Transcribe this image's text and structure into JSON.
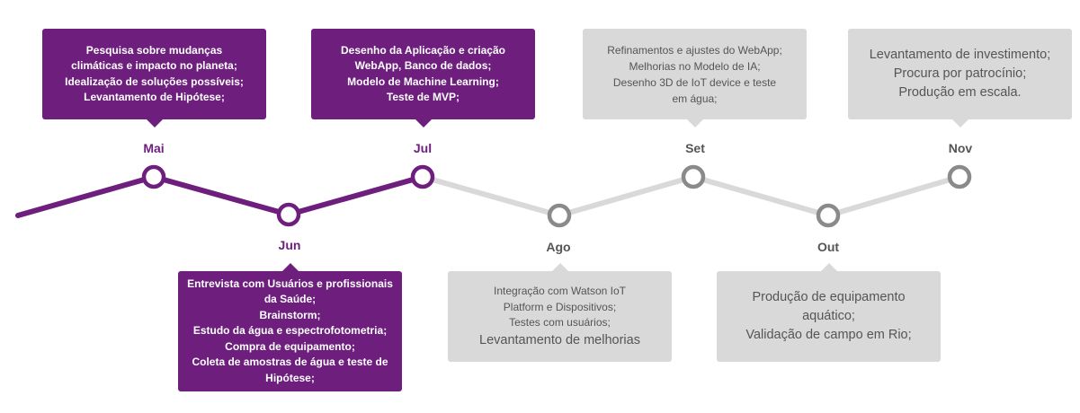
{
  "colors": {
    "done": "#6e1f7e",
    "todo": "#d9d9d9",
    "todo_text": "#555555",
    "node_todo": "#8a8a8a"
  },
  "months": [
    {
      "label": "Mai",
      "status": "done",
      "lines": [
        "Pesquisa sobre mudanças",
        "climáticas e impacto no planeta;",
        "Idealização de soluções possíveis;",
        "Levantamento de Hipótese;"
      ]
    },
    {
      "label": "Jun",
      "status": "done",
      "lines": [
        "Entrevista com Usuários e profissionais",
        "da Saúde;",
        "Brainstorm;",
        "Estudo da água e espectrofotometria;",
        "Compra de equipamento;",
        "Coleta de amostras de água e teste de",
        "Hipótese;"
      ]
    },
    {
      "label": "Jul",
      "status": "done",
      "lines": [
        "Desenho da Aplicação e criação",
        "WebApp, Banco de dados;",
        "Modelo de Machine Learning;",
        "Teste de MVP;"
      ]
    },
    {
      "label": "Ago",
      "status": "todo",
      "lines": [
        "Integração com Watson IoT",
        "Platform e Dispositivos;",
        "Testes com usuários;",
        "Levantamento de melhorias"
      ]
    },
    {
      "label": "Set",
      "status": "todo",
      "lines": [
        "Refinamentos e ajustes do WebApp;",
        "Melhorias no Modelo de IA;",
        "Desenho 3D de IoT device e teste",
        "em água;"
      ]
    },
    {
      "label": "Out",
      "status": "todo",
      "lines": [
        "Produção de equipamento",
        "aquático;",
        "Validação de campo em Rio;"
      ]
    },
    {
      "label": "Nov",
      "status": "todo",
      "lines": [
        "Levantamento de investimento;",
        "Procura por patrocínio;",
        "Produção em escala."
      ]
    }
  ]
}
